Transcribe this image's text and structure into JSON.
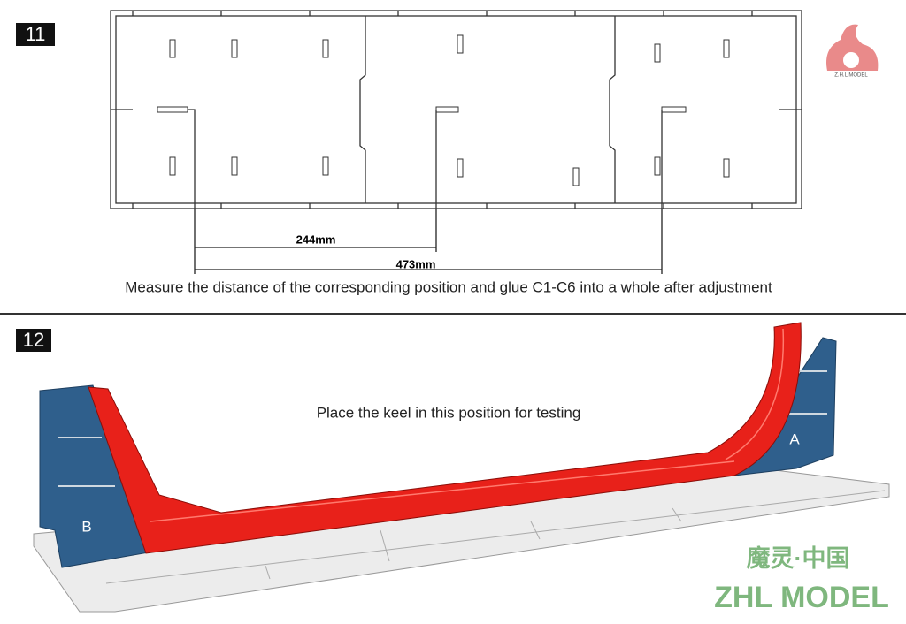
{
  "step11": {
    "number": "11",
    "dim_short": "244mm",
    "dim_long": "473mm",
    "caption": "Measure the distance of the corresponding position and glue C1-C6 into a whole after adjustment"
  },
  "step12": {
    "number": "12",
    "caption": "Place the keel in this position for testing",
    "label_a": "A",
    "label_b": "B"
  },
  "logo": {
    "small": "Z.H.L MODEL",
    "chinese": "魔灵·中国",
    "brand": "ZHL MODEL"
  }
}
